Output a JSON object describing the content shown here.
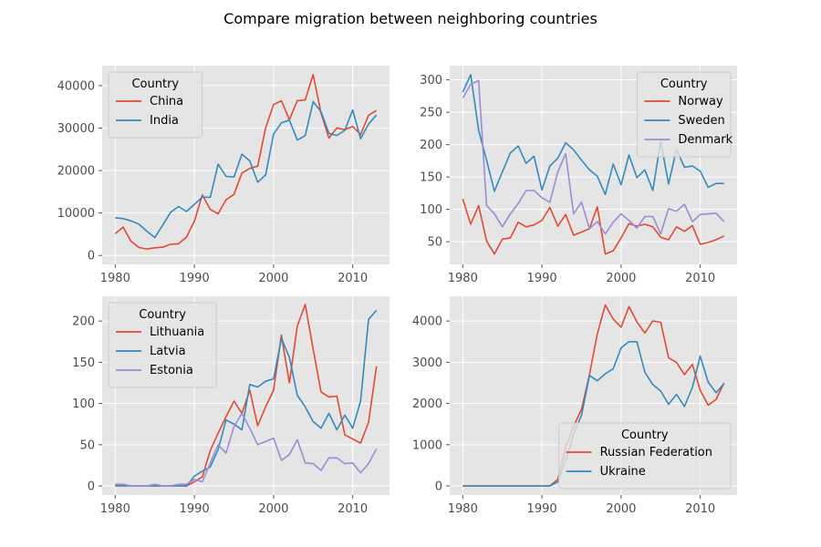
{
  "figure": {
    "title": "Compare migration between neighboring countries"
  },
  "chart_data": [
    {
      "type": "line",
      "legend_title": "Country",
      "legend_position": "top-left",
      "grid": true,
      "x": [
        1980,
        1981,
        1982,
        1983,
        1984,
        1985,
        1986,
        1987,
        1988,
        1989,
        1990,
        1991,
        1992,
        1993,
        1994,
        1995,
        1996,
        1997,
        1998,
        1999,
        2000,
        2001,
        2002,
        2003,
        2004,
        2005,
        2006,
        2007,
        2008,
        2009,
        2010,
        2011,
        2012,
        2013
      ],
      "xlim": [
        1978.35,
        2014.65
      ],
      "ylim": [
        -2100,
        44700
      ],
      "xticks": [
        1980,
        1990,
        2000,
        2010
      ],
      "yticks": [
        0,
        10000,
        20000,
        30000,
        40000
      ],
      "series": [
        {
          "name": "China",
          "color": "#e24a33",
          "values": [
            5123,
            6682,
            3308,
            1863,
            1527,
            1816,
            1960,
            2643,
            2758,
            4323,
            8076,
            14255,
            10846,
            9817,
            13128,
            14398,
            19415,
            20475,
            21049,
            30069,
            35529,
            36434,
            31961,
            36439,
            36619,
            42584,
            33518,
            27642,
            30037,
            29622,
            30391,
            28502,
            33024,
            34129
          ]
        },
        {
          "name": "India",
          "color": "#348abd",
          "values": [
            8880,
            8670,
            8147,
            7338,
            5704,
            4211,
            7150,
            10189,
            11522,
            10343,
            12041,
            13734,
            13673,
            21496,
            18620,
            18489,
            23859,
            22268,
            17241,
            18974,
            28572,
            31223,
            31889,
            27155,
            28235,
            36210,
            33848,
            28742,
            28261,
            29456,
            34235,
            27509,
            30933,
            33087
          ]
        }
      ]
    },
    {
      "type": "line",
      "legend_title": "Country",
      "legend_position": "top-right",
      "grid": true,
      "x": [
        1980,
        1981,
        1982,
        1983,
        1984,
        1985,
        1986,
        1987,
        1988,
        1989,
        1990,
        1991,
        1992,
        1993,
        1994,
        1995,
        1996,
        1997,
        1998,
        1999,
        2000,
        2001,
        2002,
        2003,
        2004,
        2005,
        2006,
        2007,
        2008,
        2009,
        2010,
        2011,
        2012,
        2013
      ],
      "xlim": [
        1978.35,
        2014.65
      ],
      "ylim": [
        15,
        322
      ],
      "xticks": [
        1980,
        1990,
        2000,
        2010
      ],
      "yticks": [
        50,
        100,
        150,
        200,
        250,
        300
      ],
      "series": [
        {
          "name": "Norway",
          "color": "#e24a33",
          "values": [
            116,
            77,
            106,
            51,
            31,
            54,
            56,
            80,
            73,
            76,
            83,
            103,
            74,
            92,
            60,
            65,
            70,
            104,
            31,
            36,
            56,
            78,
            74,
            77,
            73,
            57,
            53,
            73,
            66,
            75,
            46,
            49,
            53,
            59
          ]
        },
        {
          "name": "Sweden",
          "color": "#348abd",
          "values": [
            281,
            308,
            222,
            176,
            128,
            158,
            187,
            198,
            171,
            182,
            130,
            167,
            179,
            203,
            192,
            176,
            161,
            151,
            123,
            170,
            138,
            184,
            149,
            161,
            129,
            205,
            139,
            193,
            165,
            167,
            159,
            134,
            140,
            140
          ]
        },
        {
          "name": "Denmark",
          "color": "#988ed5",
          "values": [
            272,
            293,
            299,
            106,
            93,
            73,
            93,
            109,
            129,
            129,
            118,
            111,
            158,
            186,
            93,
            111,
            70,
            81,
            62,
            80,
            93,
            83,
            71,
            89,
            89,
            62,
            101,
            97,
            108,
            81,
            92,
            93,
            94,
            81
          ]
        }
      ]
    },
    {
      "type": "line",
      "legend_title": "Country",
      "legend_position": "top-left",
      "grid": true,
      "x": [
        1980,
        1981,
        1982,
        1983,
        1984,
        1985,
        1986,
        1987,
        1988,
        1989,
        1990,
        1991,
        1992,
        1993,
        1994,
        1995,
        1996,
        1997,
        1998,
        1999,
        2000,
        2001,
        2002,
        2003,
        2004,
        2005,
        2006,
        2007,
        2008,
        2009,
        2010,
        2011,
        2012,
        2013
      ],
      "xlim": [
        1978.35,
        2014.65
      ],
      "ylim": [
        -11,
        230
      ],
      "xticks": [
        1980,
        1990,
        2000,
        2010
      ],
      "yticks": [
        0,
        50,
        100,
        150,
        200
      ],
      "series": [
        {
          "name": "Lithuania",
          "color": "#e24a33",
          "values": [
            1,
            1,
            0,
            0,
            0,
            0,
            0,
            0,
            0,
            0,
            5,
            11,
            43,
            64,
            84,
            103,
            88,
            116,
            73,
            96,
            116,
            183,
            125,
            194,
            220,
            166,
            114,
            108,
            109,
            62,
            57,
            52,
            77,
            145
          ]
        },
        {
          "name": "Latvia",
          "color": "#348abd",
          "values": [
            0,
            0,
            0,
            0,
            0,
            0,
            0,
            0,
            0,
            0,
            12,
            18,
            23,
            44,
            80,
            75,
            68,
            123,
            120,
            127,
            130,
            179,
            156,
            110,
            96,
            78,
            70,
            88,
            68,
            86,
            70,
            103,
            202,
            213
          ]
        },
        {
          "name": "Estonia",
          "color": "#988ed5",
          "values": [
            2,
            2,
            0,
            0,
            0,
            2,
            0,
            0,
            2,
            2,
            8,
            5,
            28,
            50,
            40,
            72,
            88,
            70,
            50,
            54,
            58,
            31,
            38,
            56,
            28,
            27,
            19,
            34,
            34,
            27,
            28,
            16,
            27,
            45
          ]
        }
      ]
    },
    {
      "type": "line",
      "legend_title": "Country",
      "legend_position": "bottom-right",
      "grid": true,
      "x": [
        1980,
        1981,
        1982,
        1983,
        1984,
        1985,
        1986,
        1987,
        1988,
        1989,
        1990,
        1991,
        1992,
        1993,
        1994,
        1995,
        1996,
        1997,
        1998,
        1999,
        2000,
        2001,
        2002,
        2003,
        2004,
        2005,
        2006,
        2007,
        2008,
        2009,
        2010,
        2011,
        2012,
        2013
      ],
      "xlim": [
        1978.35,
        2014.65
      ],
      "ylim": [
        -220,
        4600
      ],
      "xticks": [
        1980,
        1990,
        2000,
        2010
      ],
      "yticks": [
        0,
        1000,
        2000,
        3000,
        4000
      ],
      "series": [
        {
          "name": "Russian Federation",
          "color": "#e24a33",
          "values": [
            0,
            0,
            0,
            0,
            0,
            0,
            0,
            0,
            0,
            0,
            0,
            0,
            160,
            940,
            1450,
            1860,
            2700,
            3690,
            4390,
            4050,
            3850,
            4350,
            3980,
            3710,
            4000,
            3970,
            3110,
            3000,
            2700,
            2950,
            2320,
            1960,
            2100,
            2500
          ]
        },
        {
          "name": "Ukraine",
          "color": "#348abd",
          "values": [
            0,
            0,
            0,
            0,
            0,
            0,
            0,
            0,
            0,
            0,
            0,
            0,
            100,
            620,
            1260,
            1720,
            2680,
            2550,
            2720,
            2840,
            3350,
            3500,
            3500,
            2760,
            2460,
            2300,
            1980,
            2220,
            1930,
            2390,
            3150,
            2520,
            2260,
            2480
          ]
        }
      ]
    }
  ]
}
